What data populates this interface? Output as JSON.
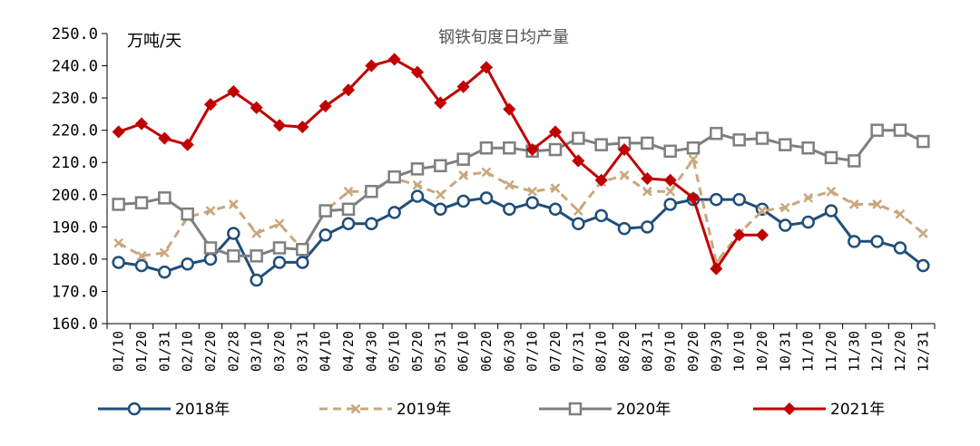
{
  "chart_data": {
    "type": "line",
    "title": "钢铁旬度日均产量",
    "unit_label": "万吨/天",
    "ylim": [
      160,
      250
    ],
    "yticks": [
      "160.0",
      "170.0",
      "180.0",
      "190.0",
      "200.0",
      "210.0",
      "220.0",
      "230.0",
      "240.0",
      "250.0"
    ],
    "y_tick_values": [
      160,
      170,
      180,
      190,
      200,
      210,
      220,
      230,
      240,
      250
    ],
    "categories": [
      "01/10",
      "01/20",
      "01/31",
      "02/10",
      "02/20",
      "02/28",
      "03/10",
      "03/20",
      "03/31",
      "04/10",
      "04/20",
      "04/30",
      "05/10",
      "05/20",
      "05/31",
      "06/10",
      "06/20",
      "06/30",
      "07/10",
      "07/20",
      "07/31",
      "08/10",
      "08/20",
      "08/31",
      "09/10",
      "09/20",
      "09/30",
      "10/10",
      "10/20",
      "10/31",
      "11/10",
      "11/20",
      "11/30",
      "12/10",
      "12/20",
      "12/31"
    ],
    "grid": false,
    "legend_position": "bottom",
    "series": [
      {
        "name": "2018年",
        "color": "#1F4E79",
        "style": "solid",
        "marker": "circle",
        "values": [
          179,
          178,
          176,
          178.5,
          180,
          188,
          173.5,
          179,
          179,
          187.5,
          191,
          191,
          194.5,
          199.5,
          195.5,
          198,
          199,
          195.5,
          197.5,
          195.5,
          191,
          193.5,
          189.5,
          190,
          197,
          198.5,
          198.5,
          198.5,
          195.5,
          190.5,
          191.5,
          195,
          185.5,
          185.5,
          183.5,
          178
        ]
      },
      {
        "name": "2019年",
        "color": "#C9A77C",
        "style": "dashed",
        "marker": "cross",
        "values": [
          185,
          181,
          182,
          193,
          195,
          197,
          188,
          191,
          183,
          195,
          201,
          201,
          205,
          203,
          200,
          206,
          207,
          203,
          201,
          202,
          195,
          204,
          206,
          201,
          201,
          211,
          179,
          188,
          195,
          196,
          199,
          201,
          197,
          197,
          194,
          188
        ]
      },
      {
        "name": "2020年",
        "color": "#7F7F7F",
        "style": "solid",
        "marker": "square",
        "values": [
          197,
          197.5,
          199,
          194,
          183.5,
          181,
          181,
          183.5,
          183,
          195,
          195.5,
          201,
          205.5,
          208,
          209,
          211,
          214.5,
          214.5,
          213.5,
          214,
          217.5,
          215.5,
          216,
          216,
          213.5,
          214.5,
          219,
          217,
          217.5,
          215.5,
          214.5,
          211.5,
          210.5,
          220,
          220,
          216.5
        ]
      },
      {
        "name": "2021年",
        "color": "#C00000",
        "style": "solid",
        "marker": "diamond",
        "values": [
          219.5,
          222,
          217.5,
          215.5,
          228,
          232,
          227,
          221.5,
          221,
          227.5,
          232.5,
          240,
          242,
          238,
          228.5,
          233.5,
          239.5,
          226.5,
          214,
          219.5,
          210.5,
          204.5,
          214,
          205,
          204.5,
          199,
          177,
          187.5,
          187.5,
          null,
          null,
          null,
          null,
          null,
          null,
          null
        ]
      }
    ]
  }
}
